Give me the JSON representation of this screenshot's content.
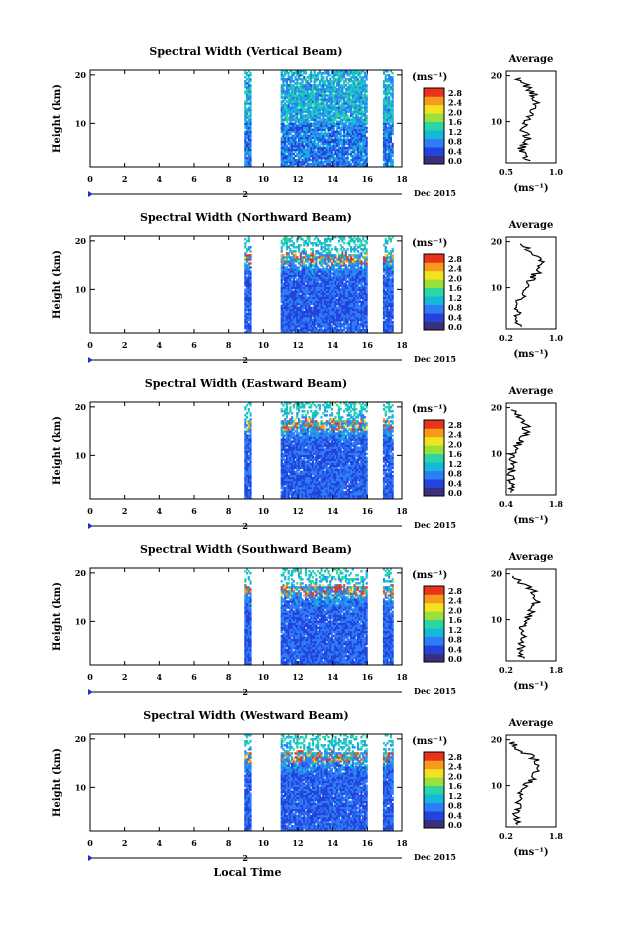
{
  "figure": {
    "xlabel": "Local Time",
    "day_marker": "2",
    "date_label": "Dec 2015",
    "x_ticks": [
      "0",
      "2",
      "4",
      "6",
      "8",
      "10",
      "12",
      "14",
      "16",
      "18"
    ],
    "y_ticks": [
      "10",
      "20"
    ],
    "colorbar_unit": "(ms⁻¹)",
    "colorbar_ticks": [
      "0.0",
      "0.4",
      "0.8",
      "1.2",
      "1.6",
      "2.0",
      "2.4",
      "2.8"
    ],
    "avg_title": "Average",
    "avg_unit": "(ms⁻¹)",
    "colors": {
      "colormap": [
        "#3a2f7d",
        "#2244dd",
        "#2f7df6",
        "#14b8d8",
        "#2ad6a3",
        "#9ae03c",
        "#f2e21f",
        "#f79a1c",
        "#e8341b"
      ],
      "line": "#000000"
    }
  },
  "chart_data": [
    {
      "type": "heatmap",
      "title": "Spectral Width (Vertical Beam)",
      "xlabel": "Local Time",
      "ylabel": "Height (km)",
      "xlim": [
        0,
        18
      ],
      "ylim": [
        1,
        21
      ],
      "data_blocks_hours": [
        [
          8.9,
          9.3
        ],
        [
          11.0,
          16.0
        ],
        [
          16.9,
          17.5
        ]
      ],
      "colorbar": {
        "label": "(ms⁻¹)",
        "range": [
          0.0,
          2.8
        ]
      },
      "average_profile": {
        "title": "Average",
        "xlabel": "(ms⁻¹)",
        "xlim": [
          0.5,
          1.0
        ],
        "x_ticks": [
          "0.5",
          "1.0"
        ],
        "height_km": [
          2,
          4,
          6,
          8,
          10,
          12,
          14,
          16,
          18,
          20
        ],
        "values": [
          0.7,
          0.65,
          0.72,
          0.68,
          0.7,
          0.75,
          0.8,
          0.78,
          0.7,
          0.6
        ]
      }
    },
    {
      "type": "heatmap",
      "title": "Spectral Width (Northward Beam)",
      "xlabel": "Local Time",
      "ylabel": "Height (km)",
      "xlim": [
        0,
        18
      ],
      "ylim": [
        1,
        21
      ],
      "data_blocks_hours": [
        [
          8.9,
          9.3
        ],
        [
          11.0,
          16.0
        ],
        [
          16.9,
          17.5
        ]
      ],
      "colorbar": {
        "label": "(ms⁻¹)",
        "range": [
          0.0,
          2.8
        ]
      },
      "average_profile": {
        "title": "Average",
        "xlabel": "(ms⁻¹)",
        "xlim": [
          0.2,
          1.0
        ],
        "x_ticks": [
          "0.2",
          "1.0"
        ],
        "height_km": [
          2,
          4,
          6,
          8,
          10,
          12,
          14,
          16,
          18,
          20
        ],
        "values": [
          0.4,
          0.38,
          0.4,
          0.45,
          0.5,
          0.6,
          0.75,
          0.8,
          0.6,
          0.3
        ]
      }
    },
    {
      "type": "heatmap",
      "title": "Spectral Width (Eastward Beam)",
      "xlabel": "Local Time",
      "ylabel": "Height (km)",
      "xlim": [
        0,
        18
      ],
      "ylim": [
        1,
        21
      ],
      "data_blocks_hours": [
        [
          8.9,
          9.3
        ],
        [
          11.0,
          16.0
        ],
        [
          16.9,
          17.5
        ]
      ],
      "colorbar": {
        "label": "(ms⁻¹)",
        "range": [
          0.0,
          2.8
        ]
      },
      "average_profile": {
        "title": "Average",
        "xlabel": "(ms⁻¹)",
        "xlim": [
          0.4,
          1.8
        ],
        "x_ticks": [
          "0.4",
          "1.8"
        ],
        "height_km": [
          2,
          4,
          6,
          8,
          10,
          12,
          14,
          16,
          18,
          20
        ],
        "values": [
          0.55,
          0.5,
          0.55,
          0.6,
          0.6,
          0.75,
          0.9,
          1.0,
          0.8,
          0.6
        ]
      }
    },
    {
      "type": "heatmap",
      "title": "Spectral Width (Southward Beam)",
      "xlabel": "Local Time",
      "ylabel": "Height (km)",
      "xlim": [
        0,
        18
      ],
      "ylim": [
        1,
        21
      ],
      "data_blocks_hours": [
        [
          8.9,
          9.3
        ],
        [
          11.0,
          16.0
        ],
        [
          16.9,
          17.5
        ]
      ],
      "colorbar": {
        "label": "(ms⁻¹)",
        "range": [
          0.0,
          2.8
        ]
      },
      "average_profile": {
        "title": "Average",
        "xlabel": "(ms⁻¹)",
        "xlim": [
          0.2,
          1.8
        ],
        "x_ticks": [
          "0.2",
          "1.8"
        ],
        "height_km": [
          2,
          4,
          6,
          8,
          10,
          12,
          14,
          16,
          18,
          20
        ],
        "values": [
          0.7,
          0.65,
          0.7,
          0.75,
          0.85,
          1.0,
          1.2,
          1.1,
          0.7,
          0.4
        ]
      }
    },
    {
      "type": "heatmap",
      "title": "Spectral Width (Westward Beam)",
      "xlabel": "Local Time",
      "ylabel": "Height (km)",
      "xlim": [
        0,
        18
      ],
      "ylim": [
        1,
        21
      ],
      "data_blocks_hours": [
        [
          8.9,
          9.3
        ],
        [
          11.0,
          16.0
        ],
        [
          16.9,
          17.5
        ]
      ],
      "colorbar": {
        "label": "(ms⁻¹)",
        "range": [
          0.0,
          2.8
        ]
      },
      "average_profile": {
        "title": "Average",
        "xlabel": "(ms⁻¹)",
        "xlim": [
          0.2,
          1.8
        ],
        "x_ticks": [
          "0.2",
          "1.8"
        ],
        "height_km": [
          2,
          4,
          6,
          8,
          10,
          12,
          14,
          16,
          18,
          20
        ],
        "values": [
          0.6,
          0.55,
          0.6,
          0.7,
          0.8,
          1.1,
          1.3,
          1.1,
          0.6,
          0.3
        ]
      }
    }
  ]
}
